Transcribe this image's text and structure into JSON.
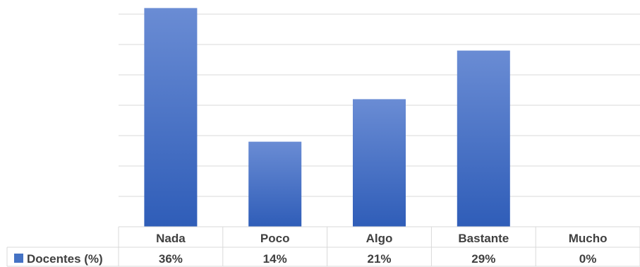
{
  "chart_data": {
    "type": "bar",
    "title": "",
    "xlabel": "",
    "ylabel": "",
    "categories": [
      "Nada",
      "Poco",
      "Algo",
      "Bastante",
      "Mucho"
    ],
    "series": [
      {
        "name": "Docentes (%)",
        "values": [
          36,
          14,
          21,
          29,
          0
        ],
        "labels": [
          "36%",
          "14%",
          "21%",
          "29%",
          "0%"
        ],
        "color": "#4472C4"
      }
    ],
    "ylim": [
      0,
      35
    ],
    "grid": true,
    "legend": "data-table-left",
    "data_table": true,
    "colors": {
      "bar_top": "#6A8CD4",
      "bar_bottom": "#2F5DB8",
      "gridline": "#D9D9D9",
      "text": "#404040",
      "legend_key": "#4472C4"
    }
  }
}
